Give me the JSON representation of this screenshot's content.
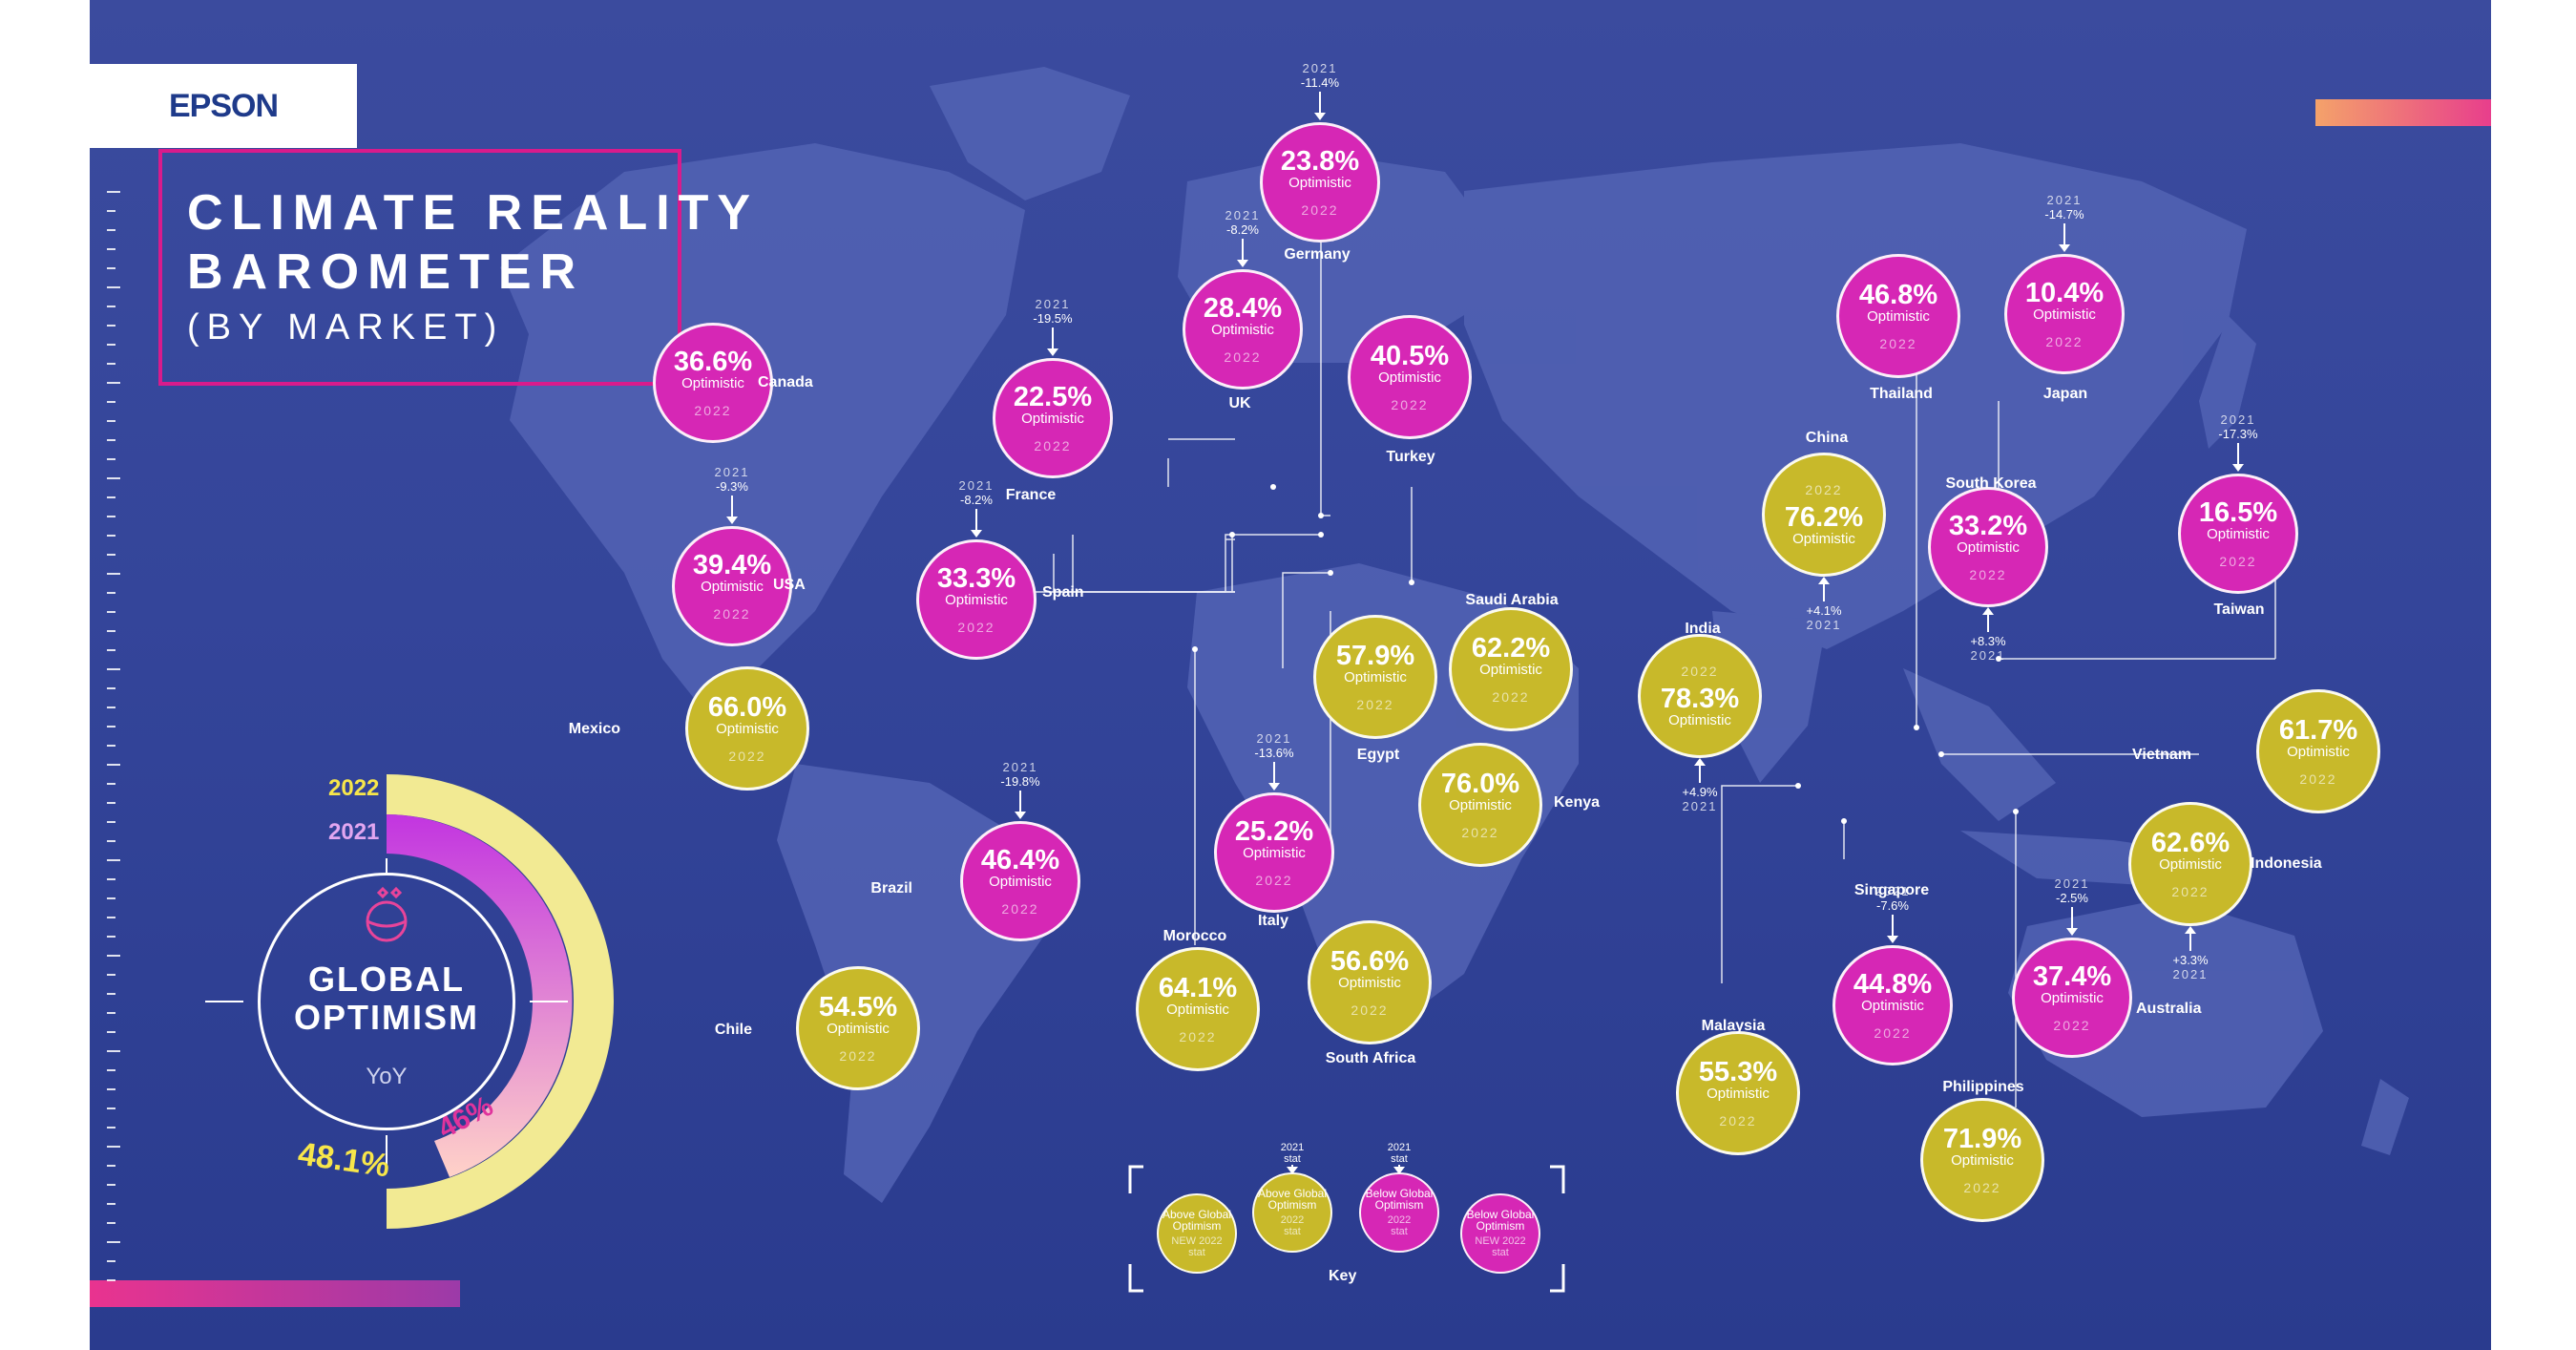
{
  "brand": {
    "name": "EPSON"
  },
  "title": {
    "line1": "CLIMATE REALITY",
    "line2": "BAROMETER",
    "subtitle": "(BY MARKET)"
  },
  "global": {
    "label_line1": "GLOBAL",
    "label_line2": "OPTIMISM",
    "yoy": "YoY",
    "year_2022": "2022",
    "year_2021": "2021",
    "value_2022": "48.1%",
    "value_2021": "46%",
    "value_2022_num": 48.1,
    "value_2021_num": 46
  },
  "colors": {
    "below": "#d627b5",
    "above": "#c8b92a",
    "accent": "#d81b8c"
  },
  "word_optimistic": "Optimistic",
  "markets": [
    {
      "id": "canada",
      "name": "Canada",
      "value": "36.6%",
      "year": "2022",
      "type": "below"
    },
    {
      "id": "usa",
      "name": "USA",
      "value": "39.4%",
      "year": "2022",
      "type": "below",
      "stat_year": "2021",
      "change": "-9.3%"
    },
    {
      "id": "mexico",
      "name": "Mexico",
      "value": "66.0%",
      "year": "2022",
      "type": "above"
    },
    {
      "id": "chile",
      "name": "Chile",
      "value": "54.5%",
      "year": "2022",
      "type": "above"
    },
    {
      "id": "brazil",
      "name": "Brazil",
      "value": "46.4%",
      "year": "2022",
      "type": "below",
      "stat_year": "2021",
      "change": "-19.8%"
    },
    {
      "id": "spain",
      "name": "Spain",
      "value": "33.3%",
      "year": "2022",
      "type": "below",
      "stat_year": "2021",
      "change": "-8.2%"
    },
    {
      "id": "france",
      "name": "France",
      "value": "22.5%",
      "year": "2022",
      "type": "below",
      "stat_year": "2021",
      "change": "-19.5%"
    },
    {
      "id": "uk",
      "name": "UK",
      "value": "28.4%",
      "year": "2022",
      "type": "below",
      "stat_year": "2021",
      "change": "-8.2%"
    },
    {
      "id": "germany",
      "name": "Germany",
      "value": "23.8%",
      "year": "2022",
      "type": "below",
      "stat_year": "2021",
      "change": "-11.4%"
    },
    {
      "id": "turkey",
      "name": "Turkey",
      "value": "40.5%",
      "year": "2022",
      "type": "below"
    },
    {
      "id": "italy",
      "name": "Italy",
      "value": "25.2%",
      "year": "2022",
      "type": "below",
      "stat_year": "2021",
      "change": "-13.6%"
    },
    {
      "id": "morocco",
      "name": "Morocco",
      "value": "64.1%",
      "year": "2022",
      "type": "above"
    },
    {
      "id": "egypt",
      "name": "Egypt",
      "value": "57.9%",
      "year": "2022",
      "type": "above"
    },
    {
      "id": "saudi",
      "name": "Saudi Arabia",
      "value": "62.2%",
      "year": "2022",
      "type": "above"
    },
    {
      "id": "kenya",
      "name": "Kenya",
      "value": "76.0%",
      "year": "2022",
      "type": "above"
    },
    {
      "id": "southafrica",
      "name": "South Africa",
      "value": "56.6%",
      "year": "2022",
      "type": "above"
    },
    {
      "id": "india",
      "name": "India",
      "value": "78.3%",
      "year": "2022",
      "type": "above",
      "stat_year": "2021",
      "change": "+4.9%"
    },
    {
      "id": "china",
      "name": "China",
      "value": "76.2%",
      "year": "2022",
      "type": "above",
      "stat_year": "2021",
      "change": "+4.1%"
    },
    {
      "id": "thailand",
      "name": "Thailand",
      "value": "46.8%",
      "year": "2022",
      "type": "below"
    },
    {
      "id": "japan",
      "name": "Japan",
      "value": "10.4%",
      "year": "2022",
      "type": "below",
      "stat_year": "2021",
      "change": "-14.7%"
    },
    {
      "id": "southkorea",
      "name": "South Korea",
      "value": "33.2%",
      "year": "2022",
      "type": "below",
      "stat_year": "2021",
      "change": "+8.3%"
    },
    {
      "id": "taiwan",
      "name": "Taiwan",
      "value": "16.5%",
      "year": "2022",
      "type": "below",
      "stat_year": "2021",
      "change": "-17.3%"
    },
    {
      "id": "vietnam",
      "name": "Vietnam",
      "value": "61.7%",
      "year": "2022",
      "type": "above"
    },
    {
      "id": "indonesia",
      "name": "Indonesia",
      "value": "62.6%",
      "year": "2022",
      "type": "above",
      "stat_year": "2021",
      "change": "+3.3%"
    },
    {
      "id": "singapore",
      "name": "Singapore",
      "value": "44.8%",
      "year": "2022",
      "type": "below",
      "stat_year": "2021",
      "change": "-7.6%"
    },
    {
      "id": "australia",
      "name": "Australia",
      "value": "37.4%",
      "year": "2022",
      "type": "below",
      "stat_year": "2021",
      "change": "-2.5%"
    },
    {
      "id": "malaysia",
      "name": "Malaysia",
      "value": "55.3%",
      "year": "2022",
      "type": "above"
    },
    {
      "id": "philippines",
      "name": "Philippines",
      "value": "71.9%",
      "year": "2022",
      "type": "above"
    }
  ],
  "key": {
    "title": "Key",
    "items": [
      {
        "line1": "Above Global",
        "line2": "Optimism",
        "line3": "NEW 2022",
        "line4": "stat"
      },
      {
        "line1": "Above Global",
        "line2": "Optimism",
        "line3": "2022",
        "line4": "stat",
        "top1": "2021",
        "top2": "stat"
      },
      {
        "line1": "Below Global",
        "line2": "Optimism",
        "line3": "2022",
        "line4": "stat",
        "top1": "2021",
        "top2": "stat"
      },
      {
        "line1": "Below Global",
        "line2": "Optimism",
        "line3": "NEW 2022",
        "line4": "stat"
      }
    ]
  }
}
